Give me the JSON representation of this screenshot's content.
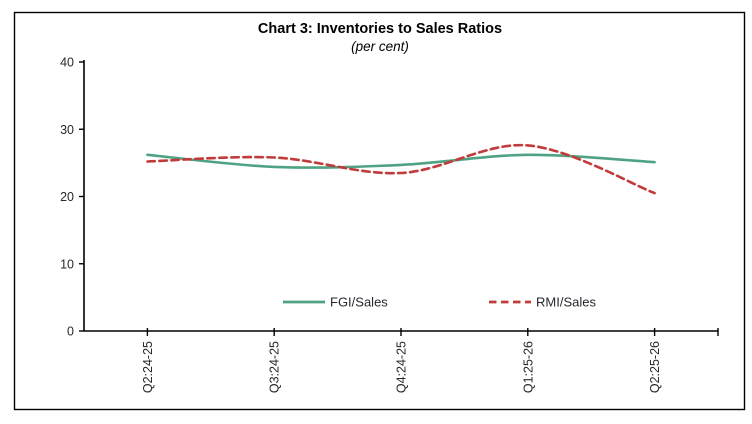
{
  "chart_data": {
    "type": "line",
    "title": "Chart 3: Inventories to Sales Ratios",
    "subtitle": "(per cent)",
    "categories": [
      "Q2:24-25",
      "Q3:24-25",
      "Q4:24-25",
      "Q1:25-26",
      "Q2:25-26"
    ],
    "series": [
      {
        "name": "FGI/Sales",
        "values": [
          26.2,
          24.4,
          24.7,
          26.2,
          25.1
        ],
        "color": "#4FA383",
        "style": "solid"
      },
      {
        "name": "RMI/Sales",
        "values": [
          25.2,
          25.8,
          23.5,
          27.6,
          20.5
        ],
        "color": "#C23B3B",
        "style": "dashed"
      }
    ],
    "ylabel": "",
    "xlabel": "",
    "ylim": [
      0,
      40
    ],
    "yticks": [
      0,
      10,
      20,
      30,
      40
    ],
    "grid": false,
    "legend_position": "bottom-center",
    "axis_color": "#000000",
    "frame_color": "#000000",
    "x_labels_rotated_degrees": 90
  }
}
